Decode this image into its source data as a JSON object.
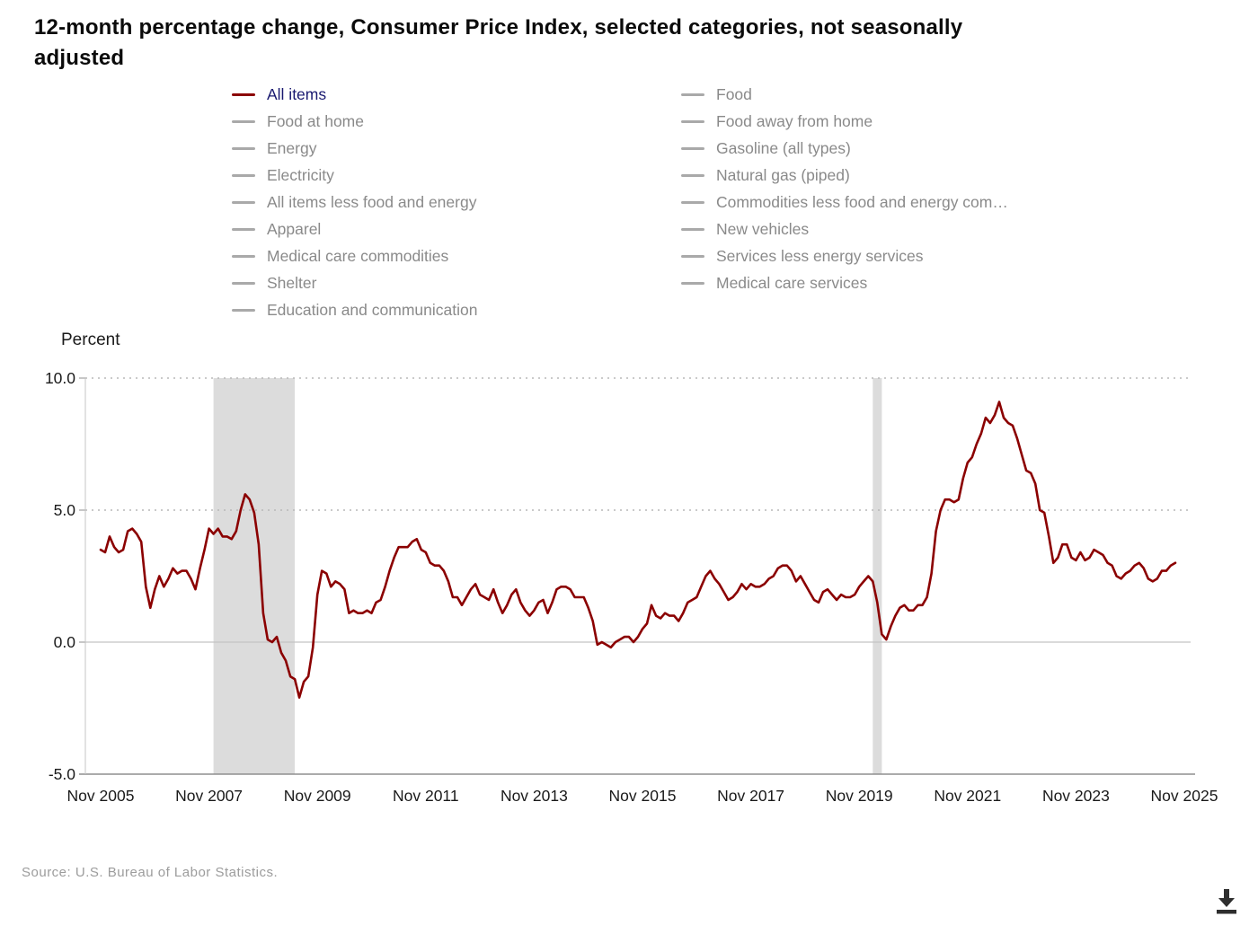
{
  "source": "Source: U.S. Bureau of Labor Statistics.",
  "colors": {
    "series_line": "#8B0000",
    "active_legend_label": "#191970",
    "inactive_legend_label": "#8a8a8a",
    "inactive_swatch": "#a9a9a9",
    "recession_band": "#dcdcdc",
    "gridline": "#b8b8b8",
    "zero_line": "#c4c4c4",
    "axis_line": "#8f8f8f"
  },
  "download_tooltip": "Download",
  "chart_data": {
    "type": "line",
    "title": "12-month percentage change, Consumer Price Index, selected categories, not seasonally adjusted",
    "ylabel": "Percent",
    "ylim": [
      -5.0,
      10.0
    ],
    "yticks": [
      {
        "value": 10.0,
        "label": "10.0"
      },
      {
        "value": 5.0,
        "label": "5.0"
      },
      {
        "value": 0.0,
        "label": "0.0"
      },
      {
        "value": -5.0,
        "label": "-5.0"
      }
    ],
    "x_span_months": 240,
    "xticks": [
      {
        "index": 0,
        "label": "Nov 2005"
      },
      {
        "index": 24,
        "label": "Nov 2007"
      },
      {
        "index": 48,
        "label": "Nov 2009"
      },
      {
        "index": 72,
        "label": "Nov 2011"
      },
      {
        "index": 96,
        "label": "Nov 2013"
      },
      {
        "index": 120,
        "label": "Nov 2015"
      },
      {
        "index": 144,
        "label": "Nov 2017"
      },
      {
        "index": 168,
        "label": "Nov 2019"
      },
      {
        "index": 192,
        "label": "Nov 2021"
      },
      {
        "index": 216,
        "label": "Nov 2023"
      },
      {
        "index": 240,
        "label": "Nov 2025"
      }
    ],
    "grid": "horizontal, dotted above zero, solid zero line",
    "legend_position": "top",
    "legend_columns": [
      {
        "items": [
          {
            "label": "All items",
            "active": true
          },
          {
            "label": "Food at home",
            "active": false
          },
          {
            "label": "Energy",
            "active": false
          },
          {
            "label": "Electricity",
            "active": false
          },
          {
            "label": "All items less food and energy",
            "active": false
          },
          {
            "label": "Apparel",
            "active": false
          },
          {
            "label": "Medical care commodities",
            "active": false
          },
          {
            "label": "Shelter",
            "active": false
          },
          {
            "label": "Education and communication",
            "active": false
          }
        ]
      },
      {
        "items": [
          {
            "label": "Food",
            "active": false
          },
          {
            "label": "Food away from home",
            "active": false
          },
          {
            "label": "Gasoline (all types)",
            "active": false
          },
          {
            "label": "Natural gas (piped)",
            "active": false
          },
          {
            "label": "Commodities less food and energy com…",
            "active": false
          },
          {
            "label": "New vehicles",
            "active": false
          },
          {
            "label": "Services less energy services",
            "active": false
          },
          {
            "label": "Medical care services",
            "active": false
          }
        ]
      }
    ],
    "recession_bands": [
      {
        "start_index": 25,
        "end_index": 43
      },
      {
        "start_index": 171,
        "end_index": 173
      }
    ],
    "series": [
      {
        "name": "All items",
        "color": "#8B0000",
        "start_label": "Nov 2005",
        "frequency": "monthly",
        "values": [
          3.5,
          3.4,
          4.0,
          3.6,
          3.4,
          3.5,
          4.2,
          4.3,
          4.1,
          3.8,
          2.1,
          1.3,
          2.0,
          2.5,
          2.1,
          2.4,
          2.8,
          2.6,
          2.7,
          2.7,
          2.4,
          2.0,
          2.8,
          3.5,
          4.3,
          4.1,
          4.3,
          4.0,
          4.0,
          3.9,
          4.2,
          5.0,
          5.6,
          5.4,
          4.9,
          3.7,
          1.1,
          0.1,
          0.0,
          0.2,
          -0.4,
          -0.7,
          -1.3,
          -1.4,
          -2.1,
          -1.5,
          -1.3,
          -0.2,
          1.8,
          2.7,
          2.6,
          2.1,
          2.3,
          2.2,
          2.0,
          1.1,
          1.2,
          1.1,
          1.1,
          1.2,
          1.1,
          1.5,
          1.6,
          2.1,
          2.7,
          3.2,
          3.6,
          3.6,
          3.6,
          3.8,
          3.9,
          3.5,
          3.4,
          3.0,
          2.9,
          2.9,
          2.7,
          2.3,
          1.7,
          1.7,
          1.4,
          1.7,
          2.0,
          2.2,
          1.8,
          1.7,
          1.6,
          2.0,
          1.5,
          1.1,
          1.4,
          1.8,
          2.0,
          1.5,
          1.2,
          1.0,
          1.2,
          1.5,
          1.6,
          1.1,
          1.5,
          2.0,
          2.1,
          2.1,
          2.0,
          1.7,
          1.7,
          1.7,
          1.3,
          0.8,
          -0.1,
          0.0,
          -0.1,
          -0.2,
          0.0,
          0.1,
          0.2,
          0.2,
          0.0,
          0.2,
          0.5,
          0.7,
          1.4,
          1.0,
          0.9,
          1.1,
          1.0,
          1.0,
          0.8,
          1.1,
          1.5,
          1.6,
          1.7,
          2.1,
          2.5,
          2.7,
          2.4,
          2.2,
          1.9,
          1.6,
          1.7,
          1.9,
          2.2,
          2.0,
          2.2,
          2.1,
          2.1,
          2.2,
          2.4,
          2.5,
          2.8,
          2.9,
          2.9,
          2.7,
          2.3,
          2.5,
          2.2,
          1.9,
          1.6,
          1.5,
          1.9,
          2.0,
          1.8,
          1.6,
          1.8,
          1.7,
          1.7,
          1.8,
          2.1,
          2.3,
          2.5,
          2.3,
          1.5,
          0.3,
          0.1,
          0.6,
          1.0,
          1.3,
          1.4,
          1.2,
          1.2,
          1.4,
          1.4,
          1.7,
          2.6,
          4.2,
          5.0,
          5.4,
          5.4,
          5.3,
          5.4,
          6.2,
          6.8,
          7.0,
          7.5,
          7.9,
          8.5,
          8.3,
          8.6,
          9.1,
          8.5,
          8.3,
          8.2,
          7.7,
          7.1,
          6.5,
          6.4,
          6.0,
          5.0,
          4.9,
          4.0,
          3.0,
          3.2,
          3.7,
          3.7,
          3.2,
          3.1,
          3.4,
          3.1,
          3.2,
          3.5,
          3.4,
          3.3,
          3.0,
          2.9,
          2.5,
          2.4,
          2.6,
          2.7,
          2.9,
          3.0,
          2.8,
          2.4,
          2.3,
          2.4,
          2.7,
          2.7,
          2.9,
          3.0
        ]
      }
    ]
  }
}
